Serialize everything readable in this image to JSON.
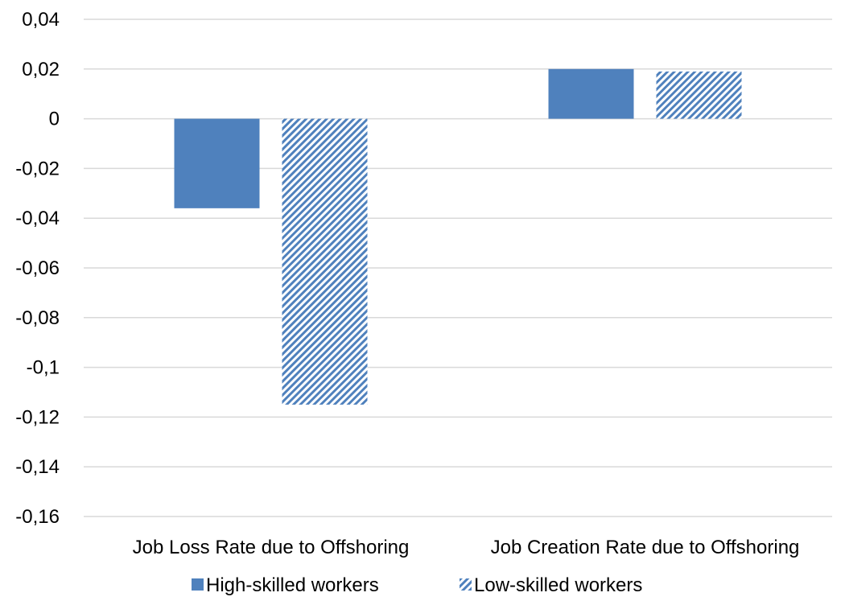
{
  "chart_data": {
    "type": "bar",
    "categories": [
      "Job Loss Rate due to Offshoring",
      "Job Creation Rate due to Offshoring"
    ],
    "series": [
      {
        "name": "High-skilled workers",
        "values": [
          -0.036,
          0.02
        ],
        "color": "#4F81BD",
        "fill": "solid"
      },
      {
        "name": "Low-skilled workers",
        "values": [
          -0.115,
          0.019
        ],
        "color": "#4F81BD",
        "fill": "diagonal-hatch"
      }
    ],
    "ylim": [
      -0.16,
      0.04
    ],
    "yticks": [
      "0,04",
      "0,02",
      "0",
      "-0,02",
      "-0,04",
      "-0,06",
      "-0,08",
      "-0,1",
      "-0,12",
      "-0,14",
      "-0,16"
    ],
    "ytick_values": [
      0.04,
      0.02,
      0,
      -0.02,
      -0.04,
      -0.06,
      -0.08,
      -0.1,
      -0.12,
      -0.14,
      -0.16
    ],
    "grid": true,
    "legend_position": "bottom",
    "gridline_color": "#D9D9D9"
  }
}
